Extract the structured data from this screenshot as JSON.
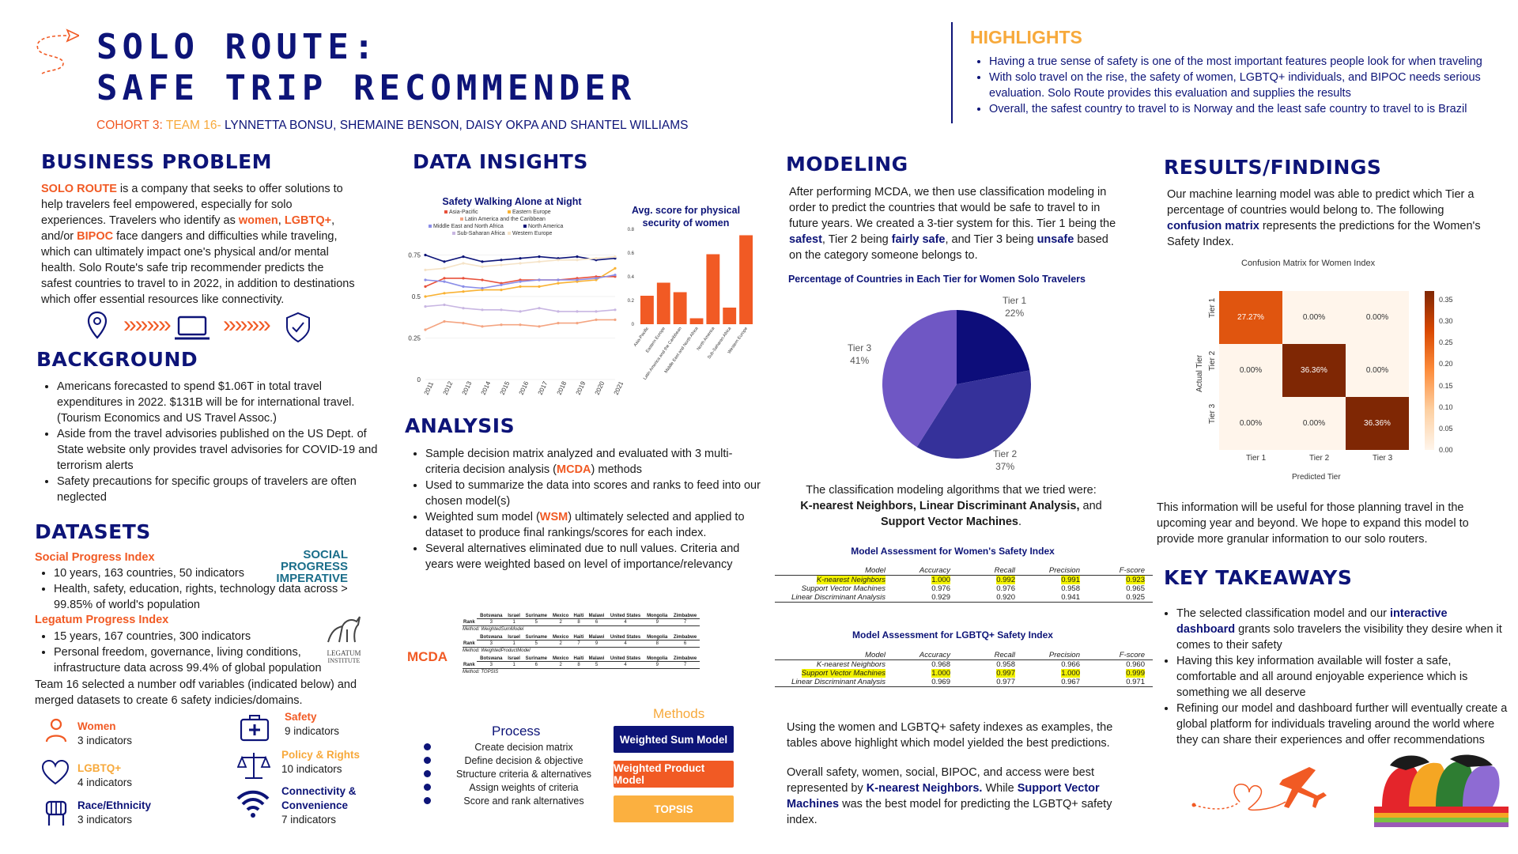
{
  "header": {
    "title_line1": "SOLO ROUTE:",
    "title_line2": "SAFE TRIP RECOMMENDER",
    "cohort": "COHORT 3:",
    "team": "TEAM 16-",
    "members": "LYNNETTA BONSU, SHEMAINE BENSON, DAISY OKPA AND SHANTEL WILLIAMS"
  },
  "highlights": {
    "heading": "HIGHLIGHTS",
    "items": [
      "Having a true sense of safety is one of the most important features people look for when traveling",
      "With solo travel on the rise, the safety of women, LGBTQ+ individuals, and BIPOC needs serious evaluation. Solo Route provides this evaluation and supplies the results",
      "Overall, the safest country to travel to is Norway and the least safe country to travel to is Brazil"
    ]
  },
  "business_problem": {
    "heading": "BUSINESS PROBLEM",
    "brand": "SOLO ROUTE",
    "p1": " is a company that seeks to offer solutions to help travelers feel empowered, especially for solo experiences.  Travelers who identify as ",
    "women": "women",
    "comma1": ", ",
    "lgbtq": "LGBTQ+",
    "p2": ", and/or ",
    "bipoc": "BIPOC",
    "p3": " face dangers and difficulties while traveling, which can ultimately impact one's physical and/or mental health.  Solo Route's safe trip recommender predicts the safest countries to travel to in 2022, in addition to destinations which offer essential resources like connectivity.",
    "icons": [
      "location-pin-icon",
      "laptop-icon",
      "shield-check-icon"
    ],
    "arrows": "»»»»"
  },
  "background": {
    "heading": "BACKGROUND",
    "items": [
      "Americans forecasted to spend $1.06T in total travel expenditures in 2022. $131B will be for international travel. (Tourism Economics and US Travel Assoc.)",
      "Aside from the travel advisories published on the US Dept. of State website only provides travel advisories for COVID-19 and terrorism alerts",
      "Safety precautions for specific groups of travelers are often neglected"
    ]
  },
  "datasets": {
    "heading": "DATASETS",
    "spi_title": "Social Progress Index",
    "spi_items": [
      "10 years, 163 countries, 50 indicators",
      "Health, safety, education, rights, technology data across > 99.85% of world's population"
    ],
    "spi_logo": [
      "SOCIAL",
      "PROGRESS",
      "IMPERATIVE"
    ],
    "lpi_title": "Legatum Progress Index",
    "lpi_items": [
      "15 years, 167 countries, 300 indicators",
      "Personal freedom, governance, living conditions, infrastructure data across 99.4% of global population"
    ],
    "lpi_logo": [
      "LEGATUM",
      "INSTITUTE"
    ],
    "note": "Team 16 selected a number odf variables (indicated below) and merged datasets to create 6 safety indicies/domains.",
    "domains": [
      {
        "name": "Women",
        "count": "3 indicators",
        "color": "#f15a24",
        "icon": "person-icon"
      },
      {
        "name": "LGBTQ+",
        "count": "4 indicators",
        "color": "#f7a93b",
        "icon": "heart-icon"
      },
      {
        "name": "Race/Ethnicity",
        "count": "3 indicators",
        "color": "#0d1478",
        "icon": "fist-icon"
      },
      {
        "name": "Safety",
        "count": "9 indicators",
        "color": "#f15a24",
        "icon": "first-aid-icon"
      },
      {
        "name": "Policy & Rights",
        "count": "10 indicators",
        "color": "#f7a93b",
        "icon": "scales-icon"
      },
      {
        "name": "Connectivity & Convenience",
        "count": "7 indicators",
        "color": "#0d1478",
        "icon": "wifi-icon"
      }
    ]
  },
  "data_insights": {
    "heading": "DATA INSIGHTS",
    "line_chart_title": "Safety Walking Alone at Night",
    "bar_chart_title": "Avg. score for physical security of women"
  },
  "chart_data": [
    {
      "type": "line",
      "title": "Safety Walking Alone at Night",
      "x": [
        "2011",
        "2012",
        "2013",
        "2014",
        "2015",
        "2016",
        "2017",
        "2018",
        "2019",
        "2020",
        "2021"
      ],
      "ylim": [
        0,
        0.8
      ],
      "yticks": [
        "0",
        "0.25",
        "0.5",
        "0.75"
      ],
      "series": [
        {
          "name": "Asia-Pacific",
          "color": "#e8503a",
          "values": [
            0.56,
            0.61,
            0.61,
            0.6,
            0.58,
            0.6,
            0.6,
            0.6,
            0.61,
            0.62,
            0.62
          ]
        },
        {
          "name": "Eastern Europe",
          "color": "#f9b233",
          "values": [
            0.5,
            0.52,
            0.53,
            0.54,
            0.54,
            0.56,
            0.56,
            0.58,
            0.59,
            0.6,
            0.67
          ]
        },
        {
          "name": "Latin America and the Caribbean",
          "color": "#f4a582",
          "values": [
            0.3,
            0.35,
            0.34,
            0.32,
            0.33,
            0.33,
            0.32,
            0.34,
            0.34,
            0.36,
            0.36
          ]
        },
        {
          "name": "North America",
          "color": "#0d1478",
          "values": [
            0.75,
            0.71,
            0.74,
            0.71,
            0.72,
            0.73,
            0.74,
            0.73,
            0.74,
            0.72,
            0.73
          ]
        },
        {
          "name": "Middle East and North Africa",
          "color": "#8b8ee8",
          "values": [
            0.6,
            0.59,
            0.56,
            0.55,
            0.57,
            0.59,
            0.6,
            0.6,
            0.6,
            0.61,
            0.63
          ]
        },
        {
          "name": "Sub-Saharan Africa",
          "color": "#c8b6e2",
          "values": [
            0.44,
            0.45,
            0.43,
            0.42,
            0.42,
            0.41,
            0.43,
            0.41,
            0.41,
            0.41,
            0.42
          ]
        },
        {
          "name": "Western Europe",
          "color": "#f5e3c7",
          "values": [
            0.66,
            0.67,
            0.7,
            0.68,
            0.69,
            0.7,
            0.71,
            0.72,
            0.72,
            0.73,
            0.74
          ]
        }
      ]
    },
    {
      "type": "bar",
      "title": "Avg. score for physical security of women",
      "categories": [
        "Asia-Pacific",
        "Eastern Europe",
        "Latin America and the Caribbean",
        "Middle East and North Africa",
        "North America",
        "Sub-Saharan Africa",
        "Western Europe"
      ],
      "values": [
        0.24,
        0.35,
        0.27,
        0.05,
        0.59,
        0.14,
        0.75
      ],
      "ylim": [
        0,
        0.8
      ],
      "yticks": [
        "0",
        "0.2",
        "0.4",
        "0.6",
        "0.8"
      ]
    },
    {
      "type": "pie",
      "title": "Percentage of Countries in Each Tier for Women Solo Travelers",
      "categories": [
        "Tier 1",
        "Tier 2",
        "Tier 3"
      ],
      "values": [
        22,
        37,
        41
      ],
      "labels": [
        "22%",
        "37%",
        "41%"
      ],
      "colors": [
        "#0d0d7a",
        "#35319a",
        "#6f57c4"
      ]
    },
    {
      "type": "heatmap",
      "title": "Confusion Matrix for Women Index",
      "xlabel": "Predicted Tier",
      "ylabel": "Actual Tier",
      "x": [
        "Tier 1",
        "Tier 2",
        "Tier 3"
      ],
      "y": [
        "Tier 1",
        "Tier 2",
        "Tier 3"
      ],
      "values": [
        [
          "27.27%",
          "0.00%",
          "0.00%"
        ],
        [
          "0.00%",
          "36.36%",
          "0.00%"
        ],
        [
          "0.00%",
          "0.00%",
          "36.36%"
        ]
      ],
      "colorbar_ticks": [
        "0.35",
        "0.30",
        "0.25",
        "0.20",
        "0.15",
        "0.10",
        "0.05",
        "0.00"
      ]
    }
  ],
  "analysis": {
    "heading": "ANALYSIS",
    "items": [
      {
        "pre": "Sample decision matrix analyzed and evaluated with 3 multi-criteria decision analysis (",
        "hl": "MCDA",
        "post": ") methods"
      },
      {
        "pre": "Used to summarize the data into scores and ranks to feed into our chosen model(s)",
        "hl": "",
        "post": ""
      },
      {
        "pre": "Weighted sum model (",
        "hl": "WSM",
        "post": ") ultimately selected and applied to dataset to produce final rankings/scores for each index."
      },
      {
        "pre": "Several alternatives eliminated due to null values. Criteria and years were weighted based on level of importance/relevancy",
        "hl": "",
        "post": ""
      }
    ],
    "mcda_label": "MCDA",
    "countries": [
      "Botswana",
      "Israel",
      "Suriname",
      "Mexico",
      "Haiti",
      "Malawi",
      "United States",
      "Mongolia",
      "Zimbabwe"
    ],
    "rank_label": "Rank",
    "tables": [
      {
        "ranks": [
          "3",
          "1",
          "5",
          "2",
          "8",
          "6",
          "4",
          "9",
          "7"
        ],
        "method": "Method: WeightedSumModel"
      },
      {
        "ranks": [
          "3",
          "1",
          "5",
          "2",
          "7",
          "9",
          "4",
          "8",
          "6"
        ],
        "method": "Method: WeightedProductModel"
      },
      {
        "ranks": [
          "3",
          "1",
          "6",
          "2",
          "8",
          "5",
          "4",
          "9",
          "7"
        ],
        "method": "Method: TOPSIS"
      }
    ],
    "process_title": "Process",
    "process_steps": [
      "Create decision matrix",
      "Define decision & objective",
      "Structure criteria & alternatives",
      "Assign weights of  criteria",
      "Score and rank alternatives"
    ],
    "methods_title": "Methods",
    "methods": [
      {
        "label": "Weighted Sum Model",
        "color": "#0d1478"
      },
      {
        "label": "Weighted Product Model",
        "color": "#f15a24"
      },
      {
        "label": "TOPSIS",
        "color": "#fbb040"
      }
    ]
  },
  "modeling": {
    "heading": "MODELING",
    "p1a": "After performing MCDA, we then use classification modeling in order to predict the countries that would be safe to travel to in future years. We created a 3-tier system for this. Tier 1 being the ",
    "safest": "safest",
    "p1b": ", Tier 2 being ",
    "fairly": "fairly safe",
    "p1c": ", and Tier 3 being ",
    "unsafe": "unsafe",
    "p1d": " based on the category someone belongs to.",
    "pie_title": "Percentage of Countries in Each Tier for Women Solo Travelers",
    "pie_labels": [
      {
        "t": "Tier 1",
        "p": "22%"
      },
      {
        "t": "Tier 2",
        "p": "37%"
      },
      {
        "t": "Tier 3",
        "p": "41%"
      }
    ],
    "algos_intro": "The classification modeling algorithms that we tried were:",
    "algos": "K-nearest Neighbors, Linear Discriminant Analysis,",
    "algos_and": " and",
    "algos2": "Support Vector Machines",
    "period": ".",
    "table_cols": [
      "Model",
      "Accuracy",
      "Recall",
      "Precision",
      "F-score"
    ],
    "women_title": "Model Assessment for Women's Safety Index",
    "women_rows": [
      {
        "m": "K-nearest Neighbors",
        "a": "1.000",
        "r": "0.992",
        "p": "0.991",
        "f": "0.923"
      },
      {
        "m": "Support Vector Machines",
        "a": "0.976",
        "r": "0.976",
        "p": "0.958",
        "f": "0.965"
      },
      {
        "m": "Linear Discriminant Analysis",
        "a": "0.929",
        "r": "0.920",
        "p": "0.941",
        "f": "0.925"
      }
    ],
    "lgbtq_title": "Model Assessment for LGBTQ+ Safety Index",
    "lgbtq_rows": [
      {
        "m": "K-nearest Neighbors",
        "a": "0.968",
        "r": "0.958",
        "p": "0.966",
        "f": "0.960"
      },
      {
        "m": "Support Vector Machines",
        "a": "1.000",
        "r": "0.997",
        "p": "1.000",
        "f": "0.999"
      },
      {
        "m": "Linear Discriminant Analysis",
        "a": "0.969",
        "r": "0.977",
        "p": "0.967",
        "f": "0.971"
      }
    ],
    "p2": "Using the women and LGBTQ+ safety indexes as examples, the tables above highlight which model yielded the best predictions.",
    "p3a": "Overall safety, women, social, BIPOC, and access were best represented by ",
    "knn": "K-nearest Neighbors.",
    "p3b": " While ",
    "svm": "Support Vector Machines",
    "p3c": " was the best model for predicting the LGBTQ+ safety index."
  },
  "results": {
    "heading": "RESULTS/FINDINGS",
    "p1a": "Our machine learning model was able to predict which Tier a percentage of countries would belong to. The following ",
    "cm": "confusion matrix",
    "p1b": " represents the predictions for the Women's Safety Index.",
    "cm_title": "Confusion Matrix for Women Index",
    "p2": "This information will be useful for those planning travel in the upcoming year and beyond. We hope to expand this model to provide more granular information to our solo routers."
  },
  "takeaways": {
    "heading": "KEY TAKEAWAYS",
    "i1a": "The selected classification model and our ",
    "i1b": "interactive dashboard",
    "i1c": " grants solo travelers the visibility they desire when it comes to their safety",
    "i2": "Having this key information available will foster a safe, comfortable and all around enjoyable experience which is something we all deserve",
    "i3": "Refining our model and dashboard further will eventually create a global platform for individuals traveling around the world where they can share their experiences and offer recommendations"
  }
}
